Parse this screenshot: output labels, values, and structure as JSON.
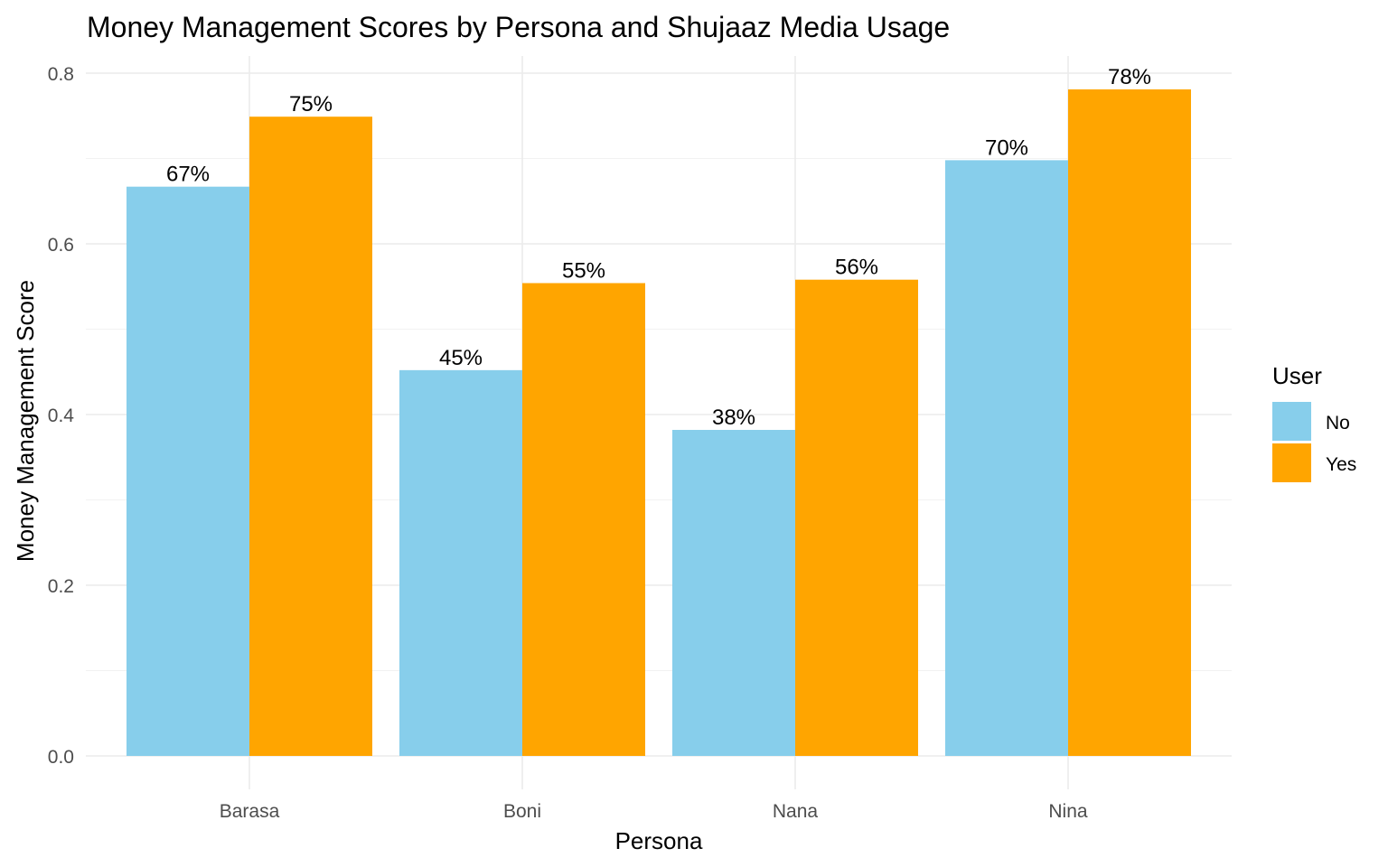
{
  "chart_data": {
    "type": "bar",
    "title": "Money Management Scores by Persona and Shujaaz Media Usage",
    "xlabel": "Persona",
    "ylabel": "Money Management Score",
    "categories": [
      "Barasa",
      "Boni",
      "Nana",
      "Nina"
    ],
    "series": [
      {
        "name": "No",
        "color": "#87CEEB",
        "values": [
          0.667,
          0.452,
          0.382,
          0.698
        ],
        "labels": [
          "67%",
          "45%",
          "38%",
          "70%"
        ]
      },
      {
        "name": "Yes",
        "color": "#FFA500",
        "values": [
          0.749,
          0.554,
          0.558,
          0.781
        ],
        "labels": [
          "75%",
          "55%",
          "56%",
          "78%"
        ]
      }
    ],
    "ylim": [
      0,
      0.8
    ],
    "yticks": [
      0.0,
      0.2,
      0.4,
      0.6,
      0.8
    ],
    "ytick_labels": [
      "0.0",
      "0.2",
      "0.4",
      "0.6",
      "0.8"
    ],
    "grid": true,
    "legend": {
      "title": "User",
      "position": "right"
    }
  }
}
